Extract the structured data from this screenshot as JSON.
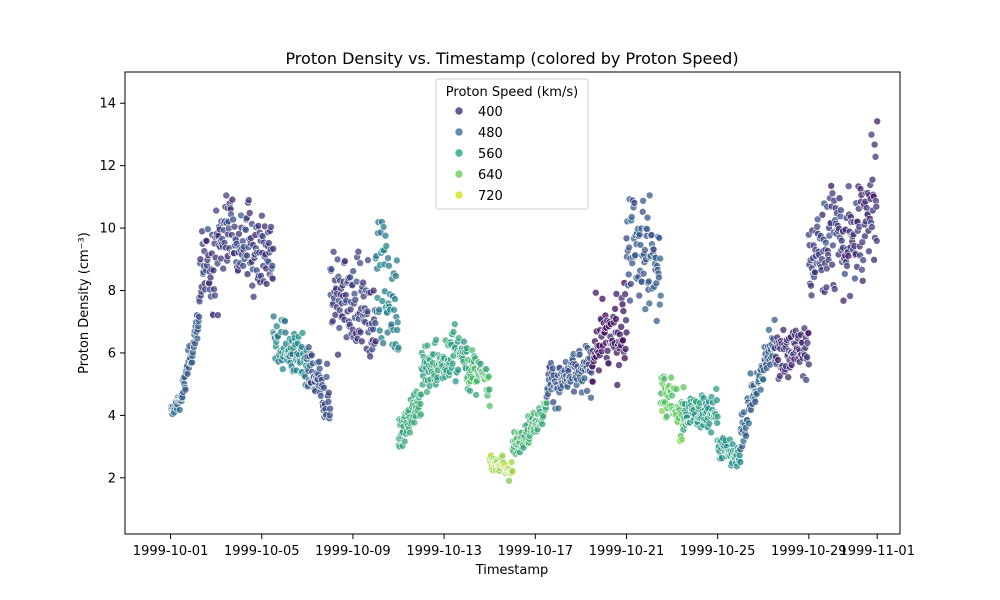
{
  "chart_data": {
    "type": "scatter",
    "title": "Proton Density vs. Timestamp (colored by Proton Speed)",
    "xlabel": "Timestamp",
    "ylabel": "Proton Density (cm⁻³)",
    "x_range": [
      "1999-09-29",
      "1999-11-02"
    ],
    "ylim": [
      0.2,
      15
    ],
    "x_ticks": [
      "1999-10-01",
      "1999-10-05",
      "1999-10-09",
      "1999-10-13",
      "1999-10-17",
      "1999-10-21",
      "1999-10-25",
      "1999-10-29",
      "1999-11-01"
    ],
    "y_ticks": [
      2,
      4,
      6,
      8,
      10,
      12,
      14
    ],
    "grid": false,
    "legend": {
      "title": "Proton Speed (km/s)",
      "placement": "top-center",
      "entries": [
        {
          "label": "400",
          "color": "#472d7b"
        },
        {
          "label": "480",
          "color": "#3b6e8f"
        },
        {
          "label": "560",
          "color": "#21a286"
        },
        {
          "label": "640",
          "color": "#6ccd5a"
        },
        {
          "label": "720",
          "color": "#d8e219"
        }
      ]
    },
    "colormap": "viridis",
    "color_range": [
      340,
      760
    ],
    "point_alpha": 0.75,
    "segments": [
      {
        "start": "1999-10-01T00:00",
        "end": "1999-10-01T12:00",
        "d0": 4.1,
        "d1": 4.6,
        "speed": 470,
        "spread": 0.3
      },
      {
        "start": "1999-10-01T12:00",
        "end": "1999-10-02T06:00",
        "d0": 4.6,
        "d1": 7.2,
        "speed": 460,
        "spread": 0.6
      },
      {
        "start": "1999-10-02T06:00",
        "end": "1999-10-03T12:00",
        "d0": 8.0,
        "d1": 10.0,
        "speed": 420,
        "spread": 2.0
      },
      {
        "start": "1999-10-03T12:00",
        "end": "1999-10-05T12:00",
        "d0": 10.0,
        "d1": 9.0,
        "speed": 420,
        "spread": 1.6
      },
      {
        "start": "1999-10-05T12:00",
        "end": "1999-10-07T00:00",
        "d0": 6.5,
        "d1": 5.5,
        "speed": 530,
        "spread": 1.0
      },
      {
        "start": "1999-10-07T00:00",
        "end": "1999-10-08T00:00",
        "d0": 5.5,
        "d1": 4.5,
        "speed": 440,
        "spread": 1.0
      },
      {
        "start": "1999-10-08T00:00",
        "end": "1999-10-10T00:00",
        "d0": 8.0,
        "d1": 7.0,
        "speed": 420,
        "spread": 2.0
      },
      {
        "start": "1999-10-10T00:00",
        "end": "1999-10-11T00:00",
        "d0": 9.0,
        "d1": 7.0,
        "speed": 520,
        "spread": 2.0
      },
      {
        "start": "1999-10-11T00:00",
        "end": "1999-10-12T00:00",
        "d0": 3.5,
        "d1": 4.5,
        "speed": 590,
        "spread": 0.8
      },
      {
        "start": "1999-10-12T00:00",
        "end": "1999-10-14T00:00",
        "d0": 5.5,
        "d1": 6.0,
        "speed": 580,
        "spread": 1.0
      },
      {
        "start": "1999-10-14T00:00",
        "end": "1999-10-15T00:00",
        "d0": 5.5,
        "d1": 5.0,
        "speed": 620,
        "spread": 0.9
      },
      {
        "start": "1999-10-15T00:00",
        "end": "1999-10-16T00:00",
        "d0": 2.6,
        "d1": 2.2,
        "speed": 700,
        "spread": 0.4
      },
      {
        "start": "1999-10-16T00:00",
        "end": "1999-10-17T12:00",
        "d0": 3.0,
        "d1": 4.2,
        "speed": 610,
        "spread": 0.5
      },
      {
        "start": "1999-10-17T12:00",
        "end": "1999-10-19T12:00",
        "d0": 5.0,
        "d1": 5.5,
        "speed": 450,
        "spread": 0.9
      },
      {
        "start": "1999-10-19T12:00",
        "end": "1999-10-21T00:00",
        "d0": 6.0,
        "d1": 7.0,
        "speed": 370,
        "spread": 1.6
      },
      {
        "start": "1999-10-21T00:00",
        "end": "1999-10-22T12:00",
        "d0": 9.5,
        "d1": 8.5,
        "speed": 460,
        "spread": 2.5
      },
      {
        "start": "1999-10-22T12:00",
        "end": "1999-10-23T12:00",
        "d0": 5.0,
        "d1": 3.8,
        "speed": 650,
        "spread": 1.0
      },
      {
        "start": "1999-10-23T12:00",
        "end": "1999-10-25T00:00",
        "d0": 4.0,
        "d1": 4.2,
        "speed": 570,
        "spread": 0.8
      },
      {
        "start": "1999-10-25T00:00",
        "end": "1999-10-26T00:00",
        "d0": 3.0,
        "d1": 2.6,
        "speed": 560,
        "spread": 0.5
      },
      {
        "start": "1999-10-26T00:00",
        "end": "1999-10-27T12:00",
        "d0": 3.5,
        "d1": 6.5,
        "speed": 470,
        "spread": 0.9
      },
      {
        "start": "1999-10-27T12:00",
        "end": "1999-10-29T00:00",
        "d0": 6.0,
        "d1": 6.0,
        "speed": 400,
        "spread": 1.0
      },
      {
        "start": "1999-10-29T00:00",
        "end": "1999-10-30T12:00",
        "d0": 9.0,
        "d1": 10.0,
        "speed": 420,
        "spread": 1.8
      },
      {
        "start": "1999-10-30T12:00",
        "end": "1999-11-01T00:00",
        "d0": 9.0,
        "d1": 11.0,
        "speed": 400,
        "spread": 2.0
      }
    ]
  }
}
